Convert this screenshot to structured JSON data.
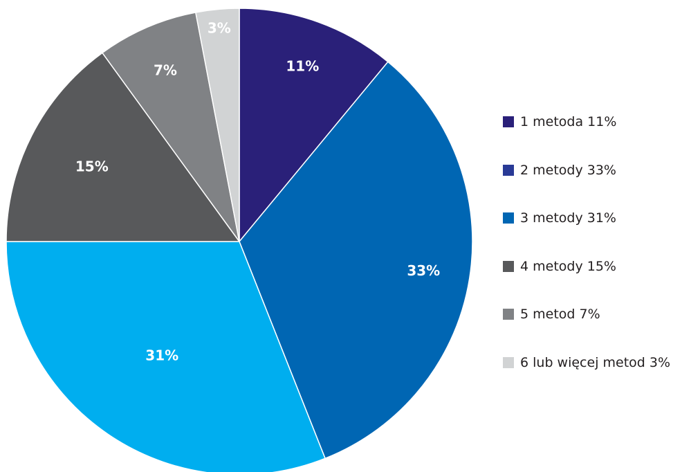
{
  "chart_data": {
    "type": "pie",
    "title": "",
    "slices": [
      {
        "label": "11%",
        "value": 11,
        "color": "#2a2079"
      },
      {
        "label": "33%",
        "value": 33,
        "color": "#0066b3"
      },
      {
        "label": "31%",
        "value": 31,
        "color": "#00aeef"
      },
      {
        "label": "15%",
        "value": 15,
        "color": "#58595b"
      },
      {
        "label": "7%",
        "value": 7,
        "color": "#808285"
      },
      {
        "label": "3%",
        "value": 3,
        "color": "#d1d3d4"
      }
    ],
    "legend": {
      "placement": "right",
      "entries": [
        {
          "label": "1 metoda 11%",
          "color": "#2a2079"
        },
        {
          "label": "2 metody 33%",
          "color": "#293a96"
        },
        {
          "label": "3 metody 31%",
          "color": "#0066b3"
        },
        {
          "label": "4 metody 15%",
          "color": "#58595b"
        },
        {
          "label": "5 metod 7%",
          "color": "#808285"
        },
        {
          "label": "6 lub więcej metod 3%",
          "color": "#d1d3d4"
        }
      ]
    }
  }
}
